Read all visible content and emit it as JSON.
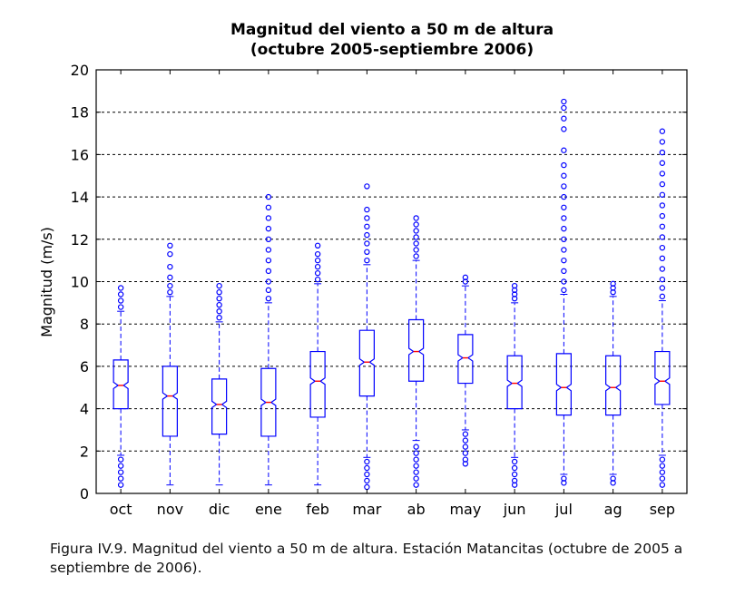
{
  "chart_data": {
    "type": "boxplot",
    "title_line1": "Magnitud del viento a 50 m de altura",
    "title_line2": "(octubre 2005-septiembre 2006)",
    "xlabel": "",
    "ylabel": "Magnitud (m/s)",
    "ylim": [
      0,
      20
    ],
    "yticks": [
      0,
      2,
      4,
      6,
      8,
      10,
      12,
      14,
      16,
      18,
      20
    ],
    "grid": "horizontal-dashed",
    "colors": {
      "box": "#0000ff",
      "median": "#ff0000",
      "outlier": "#0000ff",
      "grid": "#000000"
    },
    "categories": [
      "oct",
      "nov",
      "dic",
      "ene",
      "feb",
      "mar",
      "ab",
      "may",
      "jun",
      "jul",
      "ag",
      "sep"
    ],
    "boxes": [
      {
        "q1": 4.0,
        "median": 5.1,
        "q3": 6.3,
        "notch_lo": 4.95,
        "notch_hi": 5.25,
        "lo": 1.8,
        "hi": 8.6,
        "lo_out": [
          1.6,
          1.3,
          1.0,
          0.7,
          0.4
        ],
        "hi_out": [
          8.8,
          9.1,
          9.4,
          9.7
        ]
      },
      {
        "q1": 2.7,
        "median": 4.6,
        "q3": 6.0,
        "notch_lo": 4.45,
        "notch_hi": 4.75,
        "lo": 0.4,
        "hi": 9.3,
        "lo_out": [],
        "hi_out": [
          9.5,
          9.8,
          10.2,
          10.7,
          11.3,
          11.7
        ]
      },
      {
        "q1": 2.8,
        "median": 4.2,
        "q3": 5.4,
        "notch_lo": 4.05,
        "notch_hi": 4.35,
        "lo": 0.4,
        "hi": 8.1,
        "lo_out": [],
        "hi_out": [
          8.3,
          8.6,
          8.9,
          9.2,
          9.5,
          9.8
        ]
      },
      {
        "q1": 2.7,
        "median": 4.3,
        "q3": 5.9,
        "notch_lo": 4.15,
        "notch_hi": 4.45,
        "lo": 0.4,
        "hi": 9.0,
        "lo_out": [],
        "hi_out": [
          9.2,
          9.6,
          10.0,
          10.5,
          11.0,
          11.5,
          12.0,
          12.5,
          13.0,
          13.5,
          14.0
        ]
      },
      {
        "q1": 3.6,
        "median": 5.3,
        "q3": 6.7,
        "notch_lo": 5.15,
        "notch_hi": 5.45,
        "lo": 0.4,
        "hi": 9.9,
        "lo_out": [],
        "hi_out": [
          10.1,
          10.4,
          10.7,
          11.0,
          11.3,
          11.7
        ]
      },
      {
        "q1": 4.6,
        "median": 6.2,
        "q3": 7.7,
        "notch_lo": 6.05,
        "notch_hi": 6.35,
        "lo": 1.7,
        "hi": 10.8,
        "lo_out": [
          1.5,
          1.2,
          0.9,
          0.6,
          0.3
        ],
        "hi_out": [
          11.0,
          11.4,
          11.8,
          12.2,
          12.6,
          13.0,
          13.4,
          14.5
        ]
      },
      {
        "q1": 5.3,
        "median": 6.7,
        "q3": 8.2,
        "notch_lo": 6.55,
        "notch_hi": 6.85,
        "lo": 2.5,
        "hi": 11.0,
        "lo_out": [
          2.2,
          1.9,
          1.6,
          1.3,
          1.0,
          0.7,
          0.4
        ],
        "hi_out": [
          11.2,
          11.5,
          11.8,
          12.1,
          12.4,
          12.7,
          13.0
        ]
      },
      {
        "q1": 5.2,
        "median": 6.4,
        "q3": 7.5,
        "notch_lo": 6.25,
        "notch_hi": 6.55,
        "lo": 3.0,
        "hi": 9.8,
        "lo_out": [
          2.8,
          2.5,
          2.2,
          1.9,
          1.6,
          1.4
        ],
        "hi_out": [
          10.0,
          10.2
        ]
      },
      {
        "q1": 4.0,
        "median": 5.2,
        "q3": 6.5,
        "notch_lo": 5.05,
        "notch_hi": 5.35,
        "lo": 1.7,
        "hi": 9.0,
        "lo_out": [
          1.5,
          1.2,
          0.9,
          0.6,
          0.4
        ],
        "hi_out": [
          9.2,
          9.4,
          9.6,
          9.8
        ]
      },
      {
        "q1": 3.7,
        "median": 5.0,
        "q3": 6.6,
        "notch_lo": 4.85,
        "notch_hi": 5.15,
        "lo": 0.9,
        "hi": 9.4,
        "lo_out": [
          0.7,
          0.5
        ],
        "hi_out": [
          9.6,
          10.0,
          10.5,
          11.0,
          11.5,
          12.0,
          12.5,
          13.0,
          13.5,
          14.0,
          14.5,
          15.0,
          15.5,
          16.2,
          17.2,
          17.7,
          18.2,
          18.5
        ]
      },
      {
        "q1": 3.7,
        "median": 5.0,
        "q3": 6.5,
        "notch_lo": 4.85,
        "notch_hi": 5.15,
        "lo": 0.9,
        "hi": 9.3,
        "lo_out": [
          0.7,
          0.5
        ],
        "hi_out": [
          9.5,
          9.7,
          9.9
        ]
      },
      {
        "q1": 4.2,
        "median": 5.3,
        "q3": 6.7,
        "notch_lo": 5.15,
        "notch_hi": 5.45,
        "lo": 1.8,
        "hi": 9.1,
        "lo_out": [
          1.6,
          1.3,
          1.0,
          0.7,
          0.4
        ],
        "hi_out": [
          9.3,
          9.7,
          10.1,
          10.6,
          11.1,
          11.6,
          12.1,
          12.6,
          13.1,
          13.6,
          14.1,
          14.6,
          15.1,
          15.6,
          16.1,
          16.6,
          17.1
        ]
      }
    ]
  },
  "caption": "Figura IV.9. Magnitud del viento a 50 m de altura. Estación Matancitas (octubre de 2005 a septiembre de 2006)."
}
